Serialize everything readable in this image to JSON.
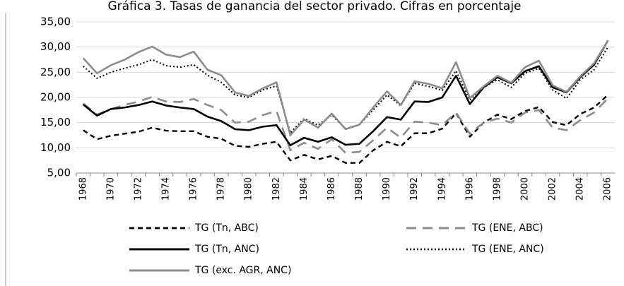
{
  "chart_data": {
    "type": "line",
    "title": "Gráfica 3. Tasas de ganancia del sector privado. Cifras en porcentaje",
    "categories": [
      "1968",
      null,
      "1970",
      null,
      "1972",
      null,
      "1974",
      null,
      "1976",
      null,
      "1978",
      null,
      "1980",
      null,
      "1982",
      null,
      "1984",
      null,
      "1986",
      null,
      "1988",
      null,
      "1990",
      null,
      "1992",
      null,
      "1994",
      null,
      "1996",
      null,
      "1998",
      null,
      "2000",
      null,
      "2002",
      null,
      "2004",
      null,
      "2006"
    ],
    "ylim": [
      5,
      35
    ],
    "yticks": [
      {
        "value": 5,
        "label": "5,00"
      },
      {
        "value": 10,
        "label": "10,00"
      },
      {
        "value": 15,
        "label": "15,00"
      },
      {
        "value": 20,
        "label": "20,00"
      },
      {
        "value": 25,
        "label": "25,00"
      },
      {
        "value": 30,
        "label": "30,00"
      },
      {
        "value": 35,
        "label": "35,00"
      }
    ],
    "grid": true,
    "series": [
      {
        "name": "TG (Tn, ABC)",
        "color": "#000000",
        "dash": "dashed",
        "values": [
          13.5,
          11.7,
          12.4,
          12.8,
          13.2,
          14.0,
          13.4,
          13.3,
          13.3,
          12.2,
          11.8,
          10.4,
          10.2,
          10.8,
          11.2,
          7.5,
          8.6,
          7.7,
          8.4,
          7.0,
          7.0,
          9.5,
          11.2,
          10.3,
          12.9,
          12.9,
          13.8,
          16.9,
          12.2,
          15.0,
          16.6,
          15.7,
          17.3,
          18.1,
          15.1,
          14.5,
          16.7,
          18.0,
          20.5
        ]
      },
      {
        "name": "TG (ENE, ABC)",
        "color": "#8c8c8c",
        "dash": "longdash",
        "values": [
          18.8,
          16.6,
          17.7,
          18.5,
          19.2,
          20.1,
          19.2,
          19.1,
          19.7,
          18.5,
          17.5,
          15.0,
          15.2,
          16.5,
          17.3,
          9.5,
          11.0,
          9.8,
          11.7,
          9.0,
          9.2,
          11.5,
          14.0,
          12.0,
          15.2,
          15.0,
          14.5,
          17.0,
          12.8,
          15.0,
          15.8,
          15.0,
          17.0,
          17.5,
          14.0,
          13.5,
          15.5,
          17.0,
          19.8
        ]
      },
      {
        "name": "TG (Tn, ANC)",
        "color": "#000000",
        "dash": "solid",
        "values": [
          18.6,
          16.4,
          17.7,
          18.0,
          18.5,
          19.2,
          18.4,
          18.0,
          17.7,
          16.2,
          15.3,
          13.7,
          13.5,
          14.2,
          14.5,
          10.5,
          12.0,
          11.2,
          12.1,
          10.6,
          10.8,
          13.3,
          16.1,
          15.6,
          19.2,
          19.1,
          20.0,
          24.3,
          18.7,
          22.0,
          24.0,
          22.8,
          25.2,
          26.2,
          22.0,
          21.0,
          24.0,
          26.5,
          31.3
        ]
      },
      {
        "name": "TG (ENE, ANC)",
        "color": "#000000",
        "dash": "dotted",
        "values": [
          26.2,
          23.8,
          25.0,
          25.8,
          26.5,
          27.5,
          26.3,
          26.0,
          26.5,
          24.4,
          23.0,
          20.5,
          20.0,
          21.5,
          22.3,
          13.0,
          15.8,
          14.5,
          16.5,
          13.8,
          14.6,
          17.5,
          20.5,
          18.4,
          22.8,
          22.2,
          21.4,
          25.3,
          19.5,
          22.0,
          23.5,
          22.0,
          24.8,
          25.8,
          21.5,
          19.8,
          23.5,
          25.5,
          30.0
        ]
      },
      {
        "name": "TG (exc. AGR, ANC)",
        "color": "#8c8c8c",
        "dash": "solid",
        "values": [
          27.8,
          24.8,
          26.4,
          27.5,
          29.0,
          30.1,
          28.5,
          28.0,
          29.1,
          25.5,
          24.4,
          21.0,
          20.3,
          21.8,
          23.0,
          12.5,
          15.6,
          14.0,
          16.8,
          13.7,
          14.6,
          18.0,
          21.2,
          18.5,
          23.2,
          22.7,
          21.8,
          27.0,
          19.9,
          22.2,
          24.3,
          22.9,
          26.0,
          27.3,
          22.4,
          21.1,
          24.2,
          26.8,
          31.3
        ]
      }
    ]
  }
}
